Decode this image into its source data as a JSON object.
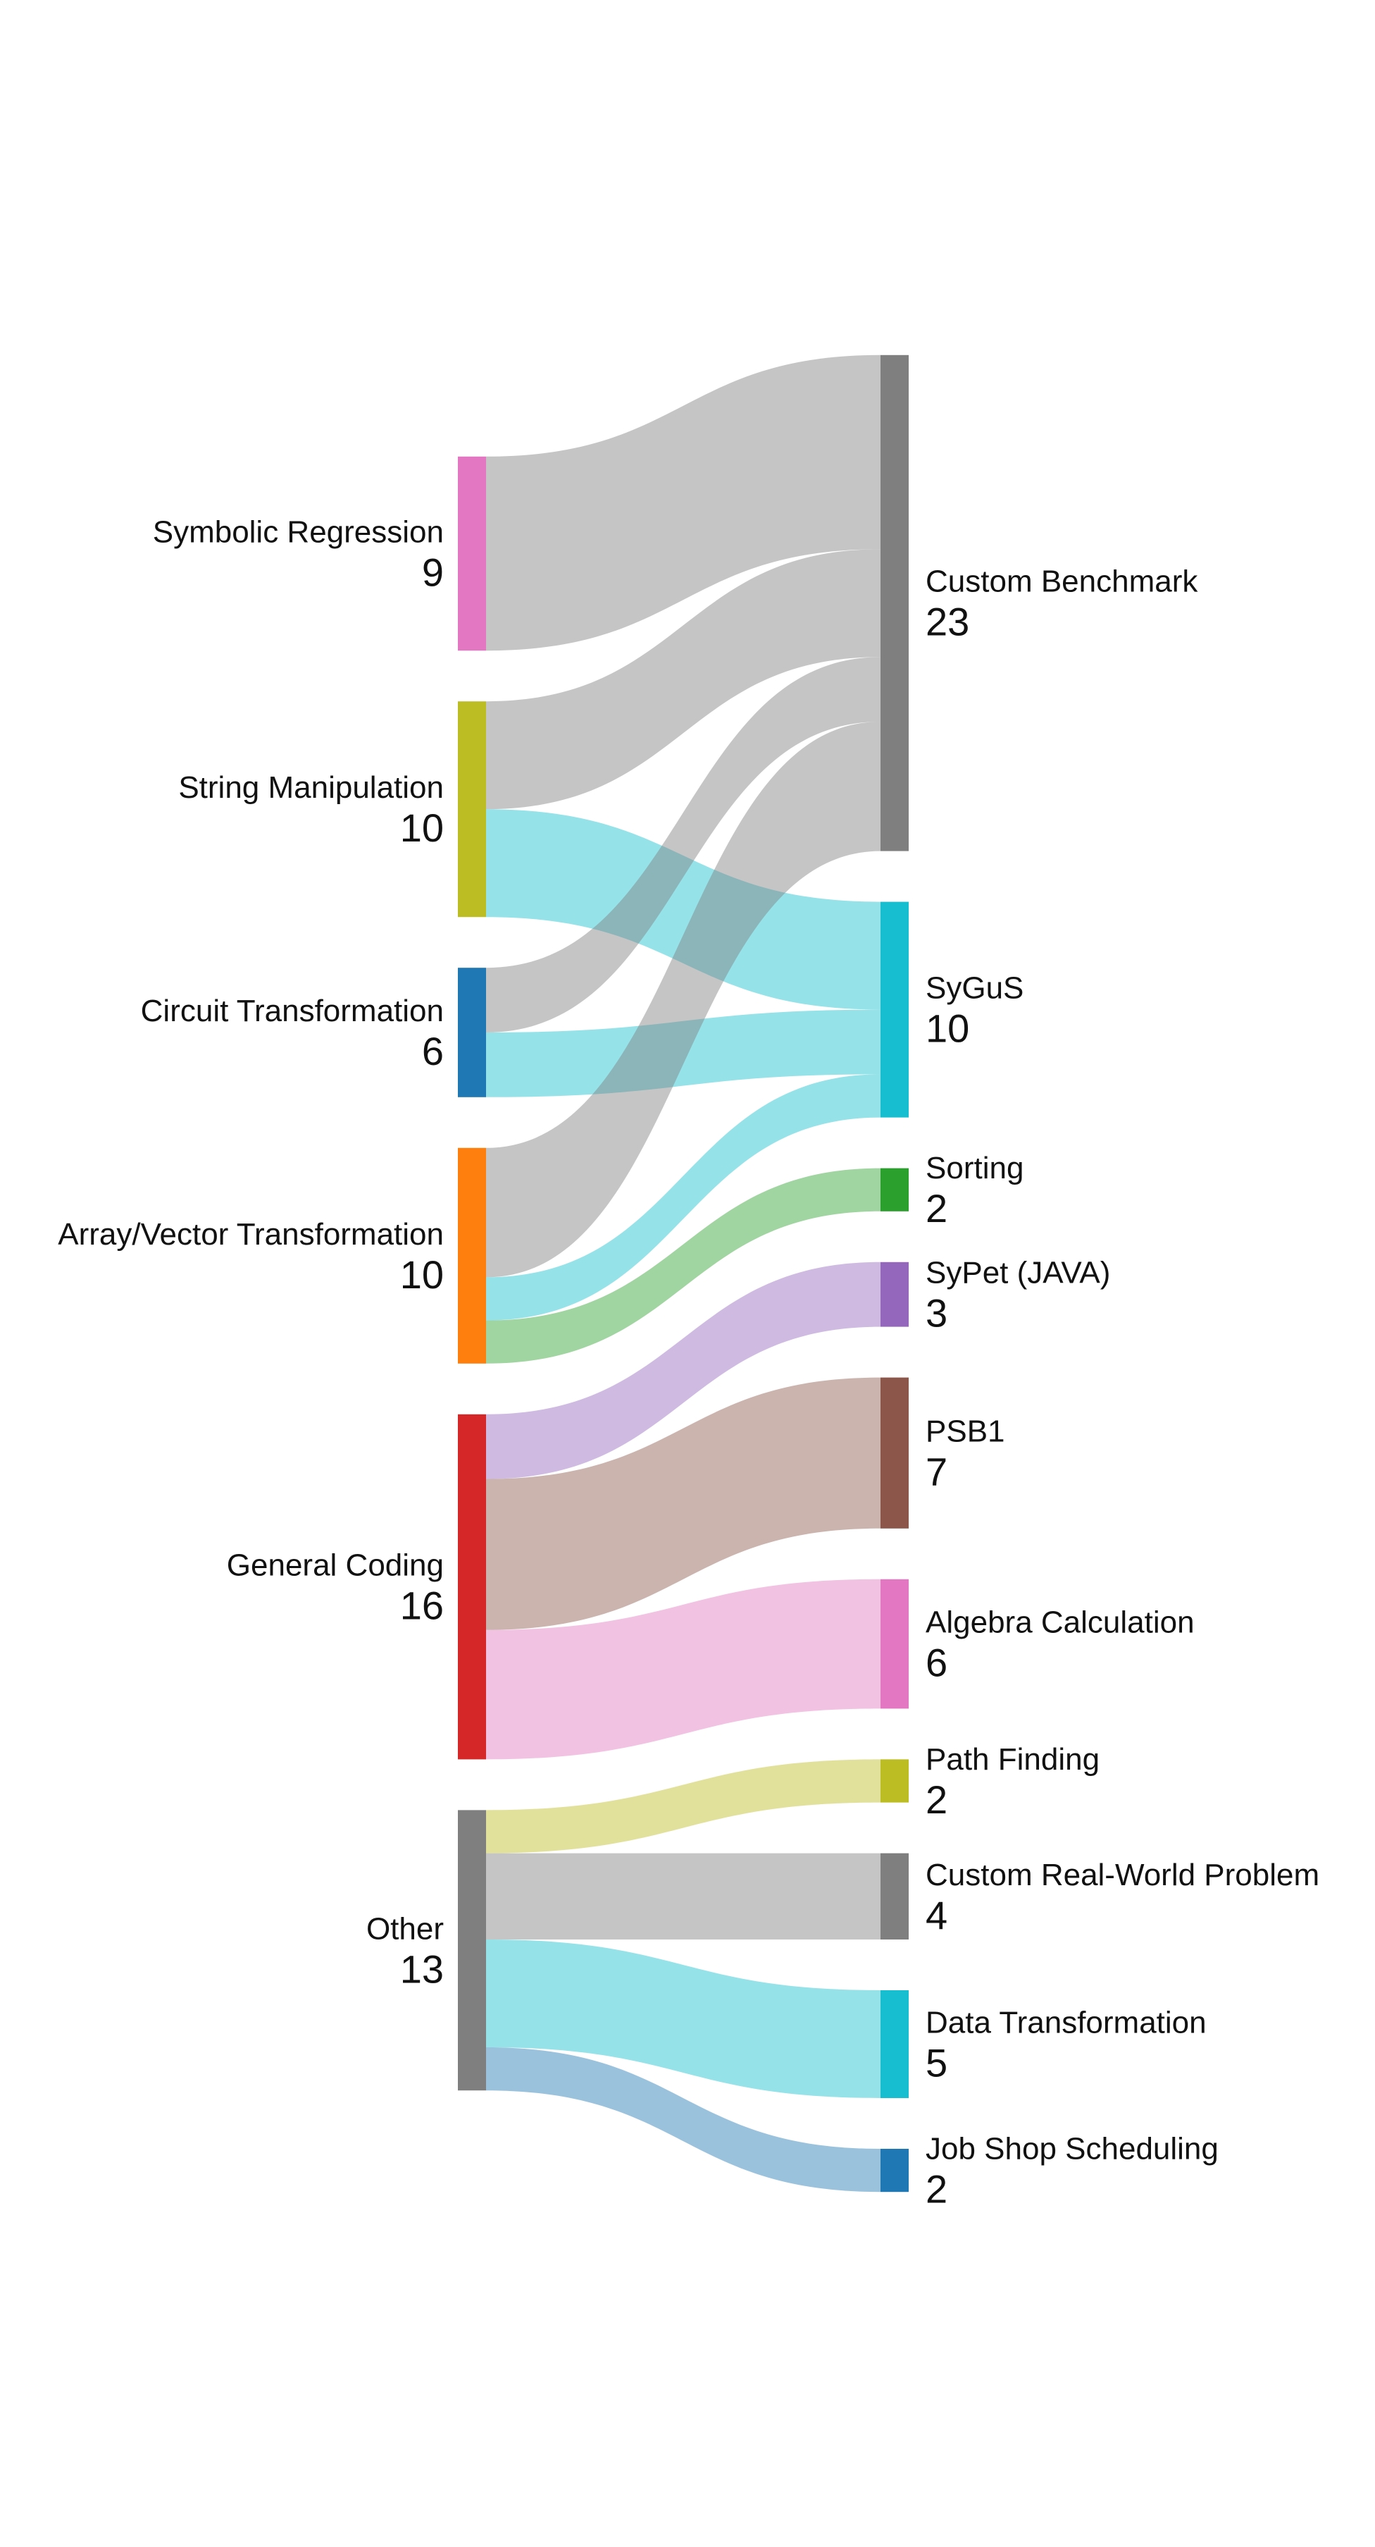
{
  "chart_data": {
    "type": "sankey",
    "nodes": [
      {
        "id": "symbolic_regression",
        "label": "Symbolic Regression",
        "value": "9",
        "column": "source",
        "color": "#e377c2"
      },
      {
        "id": "string_manipulation",
        "label": "String Manipulation",
        "value": "10",
        "column": "source",
        "color": "#bcbd22"
      },
      {
        "id": "circuit_transformation",
        "label": "Circuit Transformation",
        "value": "6",
        "column": "source",
        "color": "#1f77b4"
      },
      {
        "id": "array_vector_transformation",
        "label": "Array/Vector Transformation",
        "value": "10",
        "column": "source",
        "color": "#ff7f0e"
      },
      {
        "id": "general_coding",
        "label": "General Coding",
        "value": "16",
        "column": "source",
        "color": "#d62728"
      },
      {
        "id": "other",
        "label": "Other",
        "value": "13",
        "column": "source",
        "color": "#7f7f7f"
      },
      {
        "id": "custom_benchmark",
        "label": "Custom Benchmark",
        "value": "23",
        "column": "target",
        "color": "#7f7f7f"
      },
      {
        "id": "sygus",
        "label": "SyGuS",
        "value": "10",
        "column": "target",
        "color": "#17becf"
      },
      {
        "id": "sorting",
        "label": "Sorting",
        "value": "2",
        "column": "target",
        "color": "#2ca02c"
      },
      {
        "id": "sypet_java",
        "label": "SyPet (JAVA)",
        "value": "3",
        "column": "target",
        "color": "#9467bd"
      },
      {
        "id": "psb1",
        "label": "PSB1",
        "value": "7",
        "column": "target",
        "color": "#8c564b"
      },
      {
        "id": "algebra_calculation",
        "label": "Algebra Calculation",
        "value": "6",
        "column": "target",
        "color": "#e377c2"
      },
      {
        "id": "path_finding",
        "label": "Path Finding",
        "value": "2",
        "column": "target",
        "color": "#bcbd22"
      },
      {
        "id": "custom_real_world_problem",
        "label": "Custom Real-World Problem",
        "value": "4",
        "column": "target",
        "color": "#7f7f7f"
      },
      {
        "id": "data_transformation",
        "label": "Data Transformation",
        "value": "5",
        "column": "target",
        "color": "#17becf"
      },
      {
        "id": "job_shop_scheduling",
        "label": "Job Shop Scheduling",
        "value": "2",
        "column": "target",
        "color": "#1f77b4"
      }
    ],
    "links": [
      {
        "source": "symbolic_regression",
        "target": "custom_benchmark",
        "value": 9
      },
      {
        "source": "string_manipulation",
        "target": "custom_benchmark",
        "value": 5
      },
      {
        "source": "string_manipulation",
        "target": "sygus",
        "value": 5
      },
      {
        "source": "circuit_transformation",
        "target": "custom_benchmark",
        "value": 3
      },
      {
        "source": "circuit_transformation",
        "target": "sygus",
        "value": 3
      },
      {
        "source": "array_vector_transformation",
        "target": "custom_benchmark",
        "value": 6
      },
      {
        "source": "array_vector_transformation",
        "target": "sygus",
        "value": 2
      },
      {
        "source": "array_vector_transformation",
        "target": "sorting",
        "value": 2
      },
      {
        "source": "general_coding",
        "target": "sypet_java",
        "value": 3
      },
      {
        "source": "general_coding",
        "target": "psb1",
        "value": 7
      },
      {
        "source": "general_coding",
        "target": "algebra_calculation",
        "value": 6
      },
      {
        "source": "other",
        "target": "path_finding",
        "value": 2
      },
      {
        "source": "other",
        "target": "custom_real_world_problem",
        "value": 4
      },
      {
        "source": "other",
        "target": "data_transformation",
        "value": 5
      },
      {
        "source": "other",
        "target": "job_shop_scheduling",
        "value": 2
      }
    ]
  }
}
